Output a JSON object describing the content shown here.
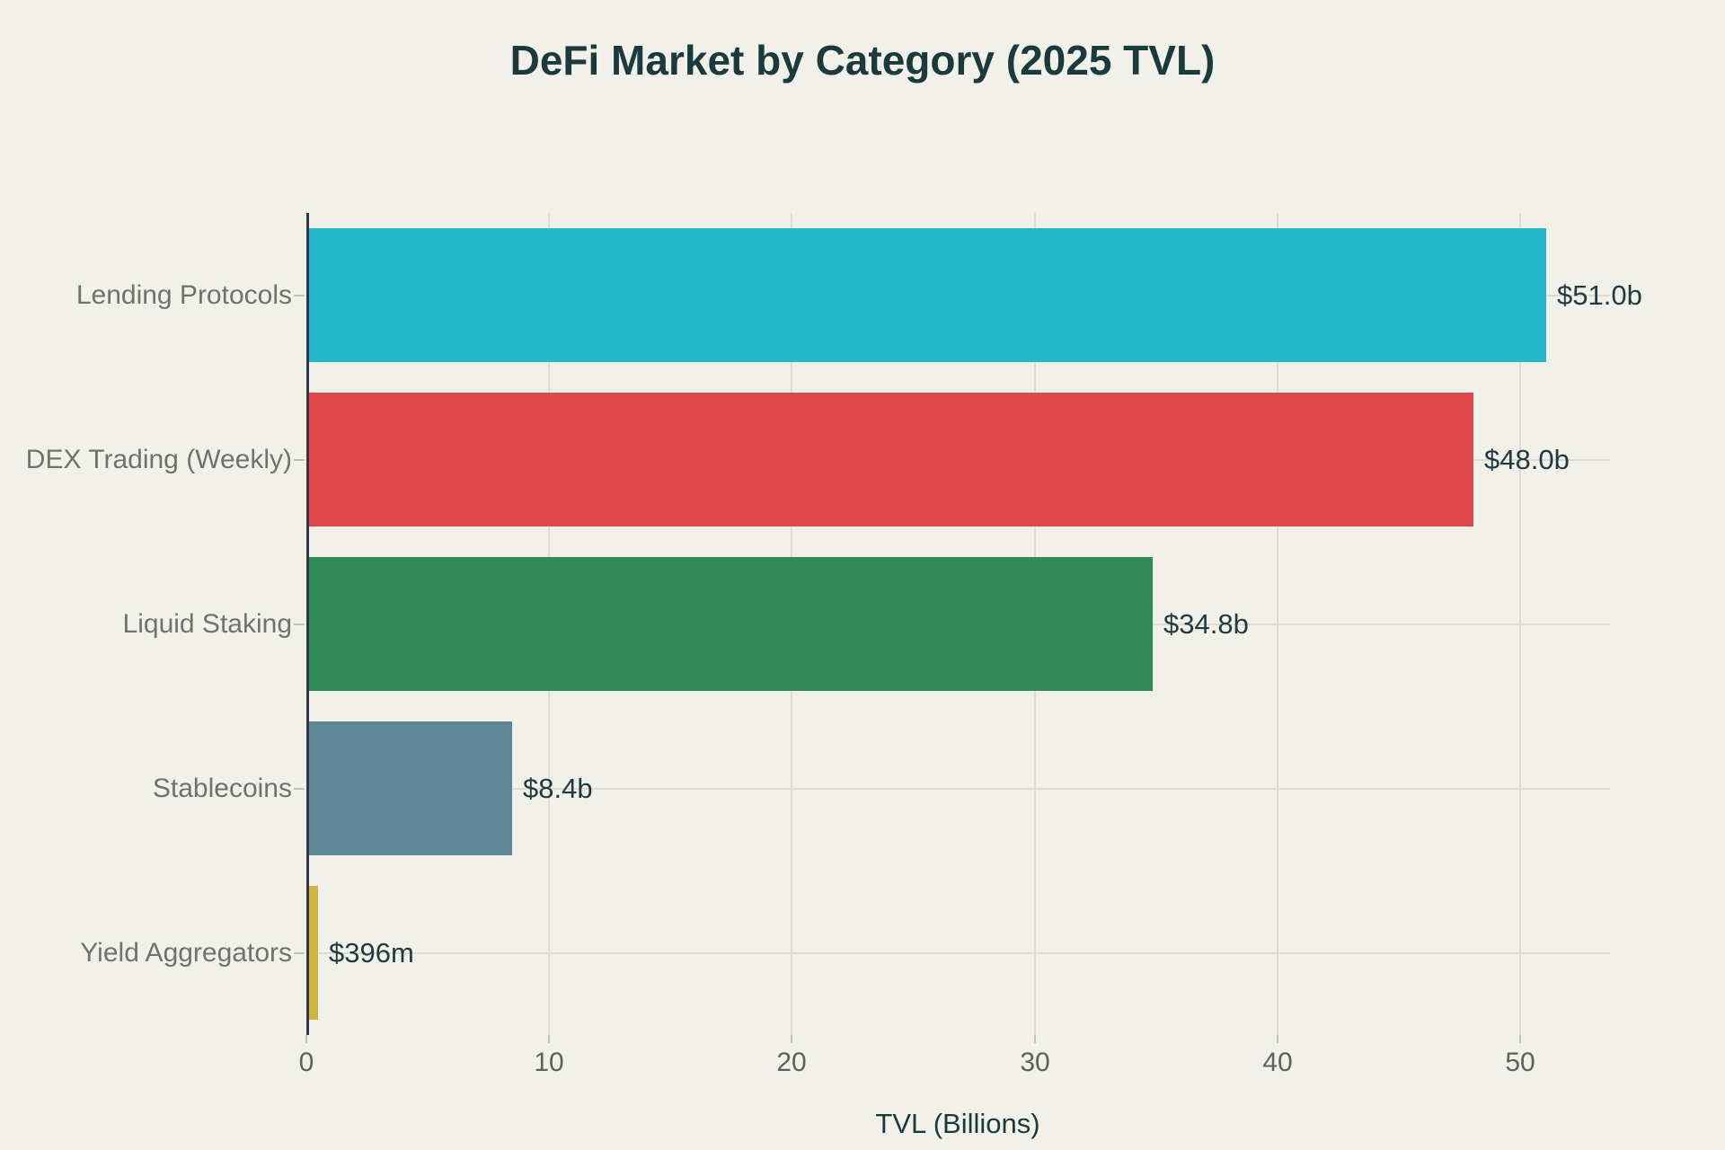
{
  "page": {
    "title": "DeFi Market by Category (2025 TVL)"
  },
  "chart_data": {
    "type": "bar",
    "orientation": "horizontal",
    "title": "DeFi Market by Category (2025 TVL)",
    "xlabel": "TVL (Billions)",
    "ylabel": "",
    "categories": [
      "Lending Protocols",
      "DEX Trading (Weekly)",
      "Liquid Staking",
      "Stablecoins",
      "Yield Aggregators"
    ],
    "values": [
      51.0,
      48.0,
      34.8,
      8.4,
      0.396
    ],
    "value_labels": [
      "$51.0b",
      "$48.0b",
      "$34.8b",
      "$8.4b",
      "$396m"
    ],
    "bar_colors": [
      "#22b7c9",
      "#df4848",
      "#2f8c55",
      "#5d8797",
      "#d1b53e"
    ],
    "xticks": [
      0,
      10,
      20,
      30,
      40,
      50
    ],
    "xtick_labels": [
      "0",
      "10",
      "20",
      "30",
      "40",
      "50"
    ],
    "xlim": [
      0,
      53.7
    ],
    "grid": true,
    "legend_position": "none"
  },
  "colors": {
    "background": "#f1f1ea",
    "title_text": "#1a3a3e",
    "value_label_text": "#1f3b3d",
    "category_label_text": "#6e7370",
    "tick_label_text": "#5d615d",
    "gridline": "#dcdcd4",
    "axis_line": "#31373a",
    "tick_mark": "#c0c2ba"
  }
}
